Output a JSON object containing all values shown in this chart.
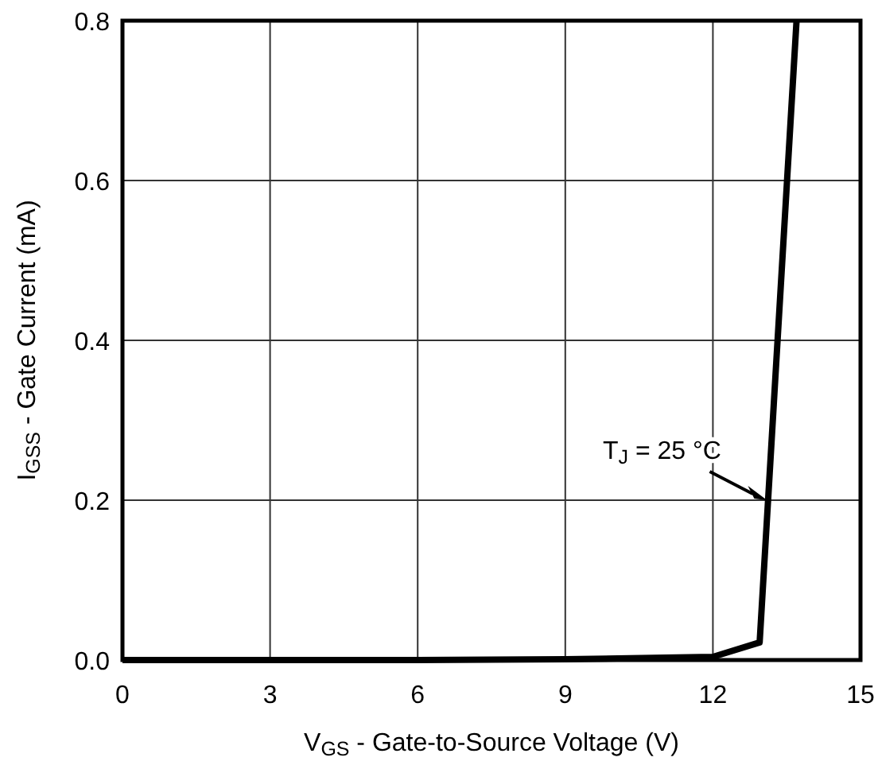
{
  "chart_data": {
    "type": "line",
    "xlabel": "V$_{GS}$ - Gate-to-Source Voltage (V)",
    "ylabel": "I$_{GSS}$ - Gate Current (mA)",
    "x": [
      0,
      3,
      6,
      9,
      12,
      12.95,
      13.7
    ],
    "series": [
      {
        "color": "#000000",
        "values": [
          0,
          0,
          0,
          0.001,
          0.004,
          0.022,
          0.8
        ]
      }
    ],
    "xlim": [
      0,
      15
    ],
    "xticks": [
      0,
      3,
      6,
      9,
      12,
      15
    ],
    "ylim": [
      0,
      0.8
    ],
    "yticks": [
      {
        "value": 0,
        "label": "0.0"
      },
      {
        "value": 0.2,
        "label": "0.2"
      },
      {
        "value": 0.4,
        "label": "0.4"
      },
      {
        "value": 0.6,
        "label": "0.6"
      },
      {
        "value": 0.8,
        "label": "0.8"
      }
    ],
    "grid": true,
    "marker": "none",
    "line_style": "solid",
    "annotations": [
      {
        "text": "T$_{J}$ = 25 °C",
        "x": 13.1,
        "y": 0.2
      }
    ]
  }
}
